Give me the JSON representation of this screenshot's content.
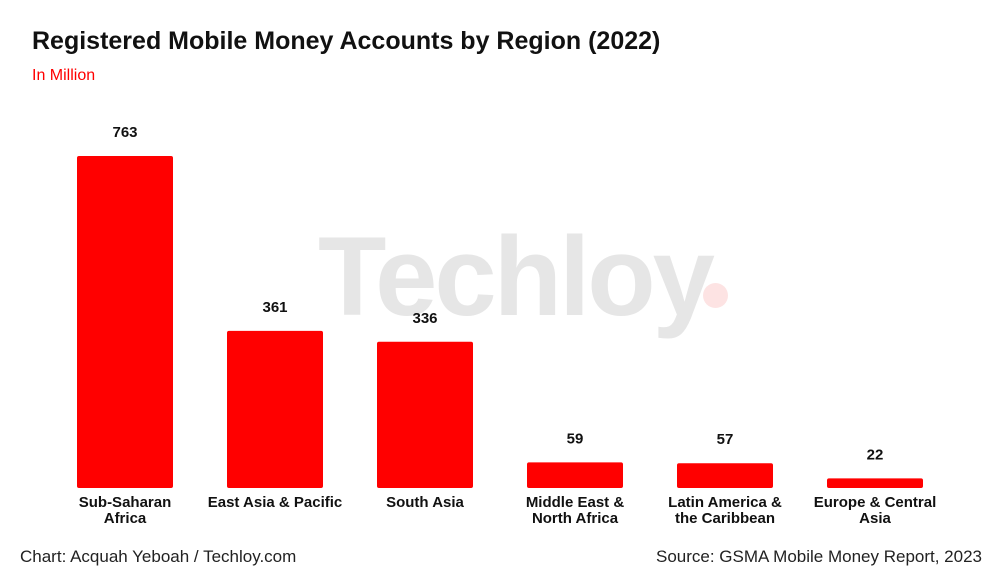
{
  "chart_data": {
    "type": "bar",
    "title": "Registered Mobile Money Accounts by Region (2022)",
    "subtitle": "In Million",
    "categories": [
      "Sub-Saharan\nAfrica",
      "East Asia & Pacific",
      "South Asia",
      "Middle East &\nNorth Africa",
      "Latin America &\nthe Caribbean",
      "Europe & Central\nAsia"
    ],
    "values": [
      763,
      361,
      336,
      59,
      57,
      22
    ],
    "ylim": [
      0,
      763
    ],
    "grid": false,
    "bar_color": "#ff0000",
    "data_labels": true
  },
  "watermark": "Techloy.",
  "footer": {
    "credit": "Chart: Acquah Yeboah / Techloy.com",
    "source": "Source: GSMA Mobile Money Report, 2023"
  }
}
